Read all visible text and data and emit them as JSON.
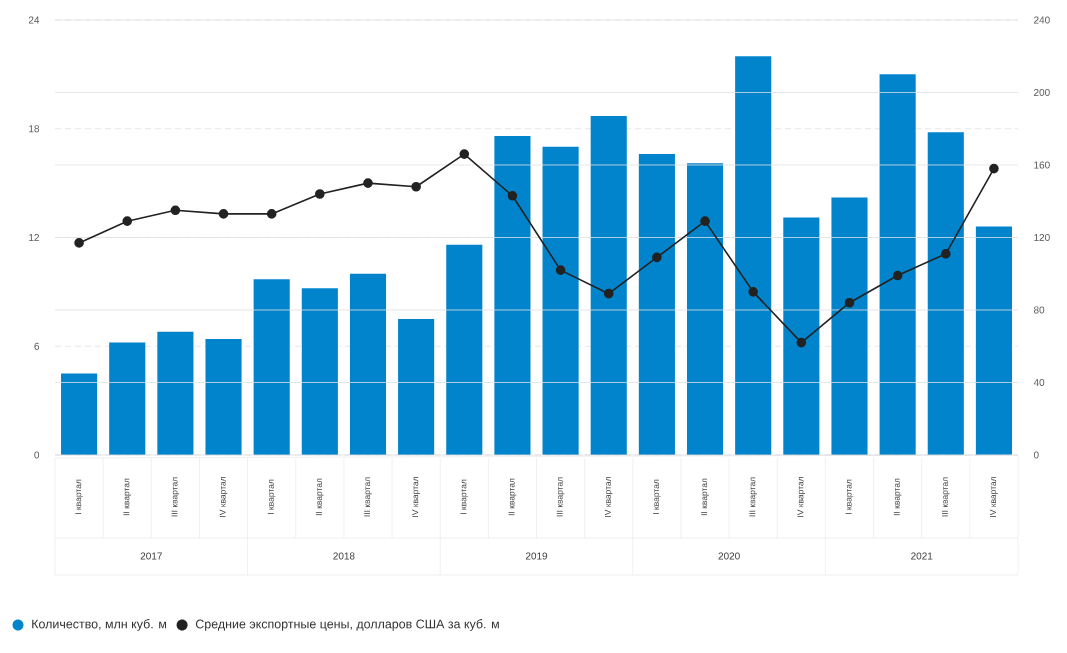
{
  "chart_data": {
    "type": "bar",
    "categories": [
      "I квартал",
      "II квартал",
      "III квартал",
      "IV квартал",
      "I квартал",
      "II квартал",
      "III квартал",
      "IV квартал",
      "I квартал",
      "II квартал",
      "III квартал",
      "IV квартал",
      "I квартал",
      "II квартал",
      "III квартал",
      "IV квартал",
      "I квартал",
      "II квартал",
      "III квартал",
      "IV квартал"
    ],
    "series": [
      {
        "name": "Количество, млн куб. м",
        "color": "#0284cc",
        "values": [
          4.5,
          6.2,
          6.8,
          6.4,
          9.7,
          9.2,
          10.0,
          7.5,
          11.6,
          17.6,
          17.0,
          18.7,
          16.6,
          16.1,
          22.0,
          13.1,
          14.2,
          21.0,
          17.8,
          12.6
        ]
      },
      {
        "name": "Средние экспортные цены, долларов США за куб. м",
        "type": "line",
        "axis": "y2",
        "marker": "circle",
        "color": "#222222",
        "values": [
          117,
          129,
          135,
          133,
          133,
          144,
          150,
          148,
          166,
          143,
          102,
          89,
          109,
          129,
          90,
          62,
          84,
          99,
          111,
          158
        ]
      }
    ],
    "ylim": [
      0,
      24
    ],
    "yticks": [
      0,
      6,
      12,
      18,
      24
    ],
    "y2lim": [
      0,
      240
    ],
    "y2ticks": [
      0,
      40,
      80,
      120,
      160,
      200,
      240
    ],
    "grid": true,
    "legend": "bottom",
    "annotations": [
      "2017",
      "2018",
      "2019",
      "2020",
      "2021"
    ]
  }
}
